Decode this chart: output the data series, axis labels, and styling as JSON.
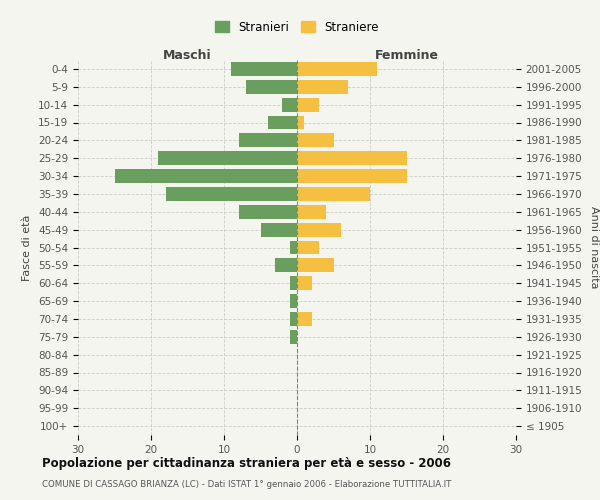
{
  "age_groups": [
    "0-4",
    "5-9",
    "10-14",
    "15-19",
    "20-24",
    "25-29",
    "30-34",
    "35-39",
    "40-44",
    "45-49",
    "50-54",
    "55-59",
    "60-64",
    "65-69",
    "70-74",
    "75-79",
    "80-84",
    "85-89",
    "90-94",
    "95-99",
    "100+"
  ],
  "birth_years": [
    "2001-2005",
    "1996-2000",
    "1991-1995",
    "1986-1990",
    "1981-1985",
    "1976-1980",
    "1971-1975",
    "1966-1970",
    "1961-1965",
    "1956-1960",
    "1951-1955",
    "1946-1950",
    "1941-1945",
    "1936-1940",
    "1931-1935",
    "1926-1930",
    "1921-1925",
    "1916-1920",
    "1911-1915",
    "1906-1910",
    "≤ 1905"
  ],
  "maschi": [
    9,
    7,
    2,
    4,
    8,
    19,
    25,
    18,
    8,
    5,
    1,
    3,
    1,
    1,
    1,
    1,
    0,
    0,
    0,
    0,
    0
  ],
  "femmine": [
    11,
    7,
    3,
    1,
    5,
    15,
    15,
    10,
    4,
    6,
    3,
    5,
    2,
    0,
    2,
    0,
    0,
    0,
    0,
    0,
    0
  ],
  "color_maschi": "#6a9e5f",
  "color_femmine": "#f5bf42",
  "bg_color": "#f5f5f0",
  "grid_color": "#cccccc",
  "title": "Popolazione per cittadinanza straniera per età e sesso - 2006",
  "subtitle": "COMUNE DI CASSAGO BRIANZA (LC) - Dati ISTAT 1° gennaio 2006 - Elaborazione TUTTITALIA.IT",
  "ylabel_left": "Fasce di età",
  "ylabel_right": "Anni di nascita",
  "label_maschi": "Maschi",
  "label_femmine": "Femmine",
  "legend_stranieri": "Stranieri",
  "legend_straniere": "Straniere",
  "xlim": 30
}
